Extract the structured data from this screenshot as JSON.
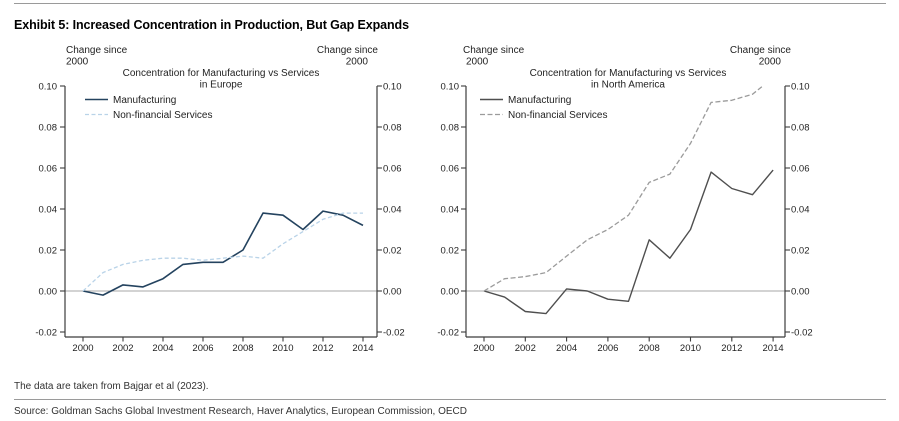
{
  "header": {
    "title": "Exhibit 5: Increased Concentration in Production, But Gap Expands"
  },
  "footer": {
    "note": "The data are taken from Bajgar et al (2023).",
    "source": "Source: Goldman Sachs Global Investment Research, Haver Analytics, European Commission, OECD"
  },
  "colors": {
    "europe_manufacturing": "#24435f",
    "europe_services": "#b9d3e8",
    "na_manufacturing": "#4f4f4f",
    "na_services": "#9b9b9b",
    "axis": "#3c3c3c",
    "zero_line": "#8a8a8a"
  },
  "chart_data": [
    {
      "type": "line",
      "title": "Concentration for Manufacturing vs Services in Europe",
      "title_lines": [
        "Concentration for Manufacturing vs Services",
        "in Europe"
      ],
      "axis_caption_lines": [
        "Change since",
        "2000"
      ],
      "legend_position": "top-left",
      "grid": false,
      "xlim": [
        2000,
        2014
      ],
      "ylim": [
        -0.02,
        0.1
      ],
      "x_tick_labels": [
        "2000",
        "2002",
        "2004",
        "2006",
        "2008",
        "2010",
        "2012",
        "2014"
      ],
      "y_tick_labels": [
        "0.10",
        "0.08",
        "0.06",
        "0.04",
        "0.02",
        "0.00",
        "-0.02"
      ],
      "y_ticks": [
        0.1,
        0.08,
        0.06,
        0.04,
        0.02,
        0.0,
        -0.02
      ],
      "series": [
        {
          "name": "Manufacturing",
          "style": "solid",
          "color_key": "europe_manufacturing",
          "x": [
            2000,
            2001,
            2002,
            2003,
            2004,
            2005,
            2006,
            2007,
            2008,
            2009,
            2010,
            2011,
            2012,
            2013,
            2014
          ],
          "values": [
            0.0,
            -0.002,
            0.003,
            0.002,
            0.006,
            0.013,
            0.014,
            0.014,
            0.02,
            0.038,
            0.037,
            0.03,
            0.039,
            0.037,
            0.032
          ]
        },
        {
          "name": "Non-financial Services",
          "style": "dashed",
          "color_key": "europe_services",
          "x": [
            2000,
            2001,
            2002,
            2003,
            2004,
            2005,
            2006,
            2007,
            2008,
            2009,
            2010,
            2011,
            2012,
            2013,
            2014
          ],
          "values": [
            0.0,
            0.009,
            0.013,
            0.015,
            0.016,
            0.016,
            0.015,
            0.016,
            0.017,
            0.016,
            0.023,
            0.029,
            0.035,
            0.038,
            0.038
          ]
        }
      ]
    },
    {
      "type": "line",
      "title": "Concentration for Manufacturing vs Services in North America",
      "title_lines": [
        "Concentration for Manufacturing vs Services",
        "in North America"
      ],
      "axis_caption_lines": [
        "Change since",
        "2000"
      ],
      "legend_position": "top-left",
      "grid": false,
      "xlim": [
        2000,
        2014
      ],
      "ylim": [
        -0.02,
        0.1
      ],
      "x_tick_labels": [
        "2000",
        "2002",
        "2004",
        "2006",
        "2008",
        "2010",
        "2012",
        "2014"
      ],
      "y_tick_labels": [
        "0.10",
        "0.08",
        "0.06",
        "0.04",
        "0.02",
        "0.00",
        "-0.02"
      ],
      "y_ticks": [
        0.1,
        0.08,
        0.06,
        0.04,
        0.02,
        0.0,
        -0.02
      ],
      "series": [
        {
          "name": "Manufacturing",
          "style": "solid",
          "color_key": "na_manufacturing",
          "x": [
            2000,
            2001,
            2002,
            2003,
            2004,
            2005,
            2006,
            2007,
            2008,
            2009,
            2010,
            2011,
            2012,
            2013,
            2014
          ],
          "values": [
            0.0,
            -0.003,
            -0.01,
            -0.011,
            0.001,
            0.0,
            -0.004,
            -0.005,
            0.025,
            0.016,
            0.03,
            0.058,
            0.05,
            0.047,
            0.059
          ]
        },
        {
          "name": "Non-financial Services",
          "style": "dashed",
          "color_key": "na_services",
          "x": [
            2000,
            2001,
            2002,
            2003,
            2004,
            2005,
            2006,
            2007,
            2008,
            2009,
            2010,
            2011,
            2012,
            2013,
            2013.5
          ],
          "values": [
            0.0,
            0.006,
            0.007,
            0.009,
            0.017,
            0.025,
            0.03,
            0.037,
            0.053,
            0.057,
            0.072,
            0.092,
            0.093,
            0.096,
            0.1
          ]
        }
      ]
    }
  ]
}
